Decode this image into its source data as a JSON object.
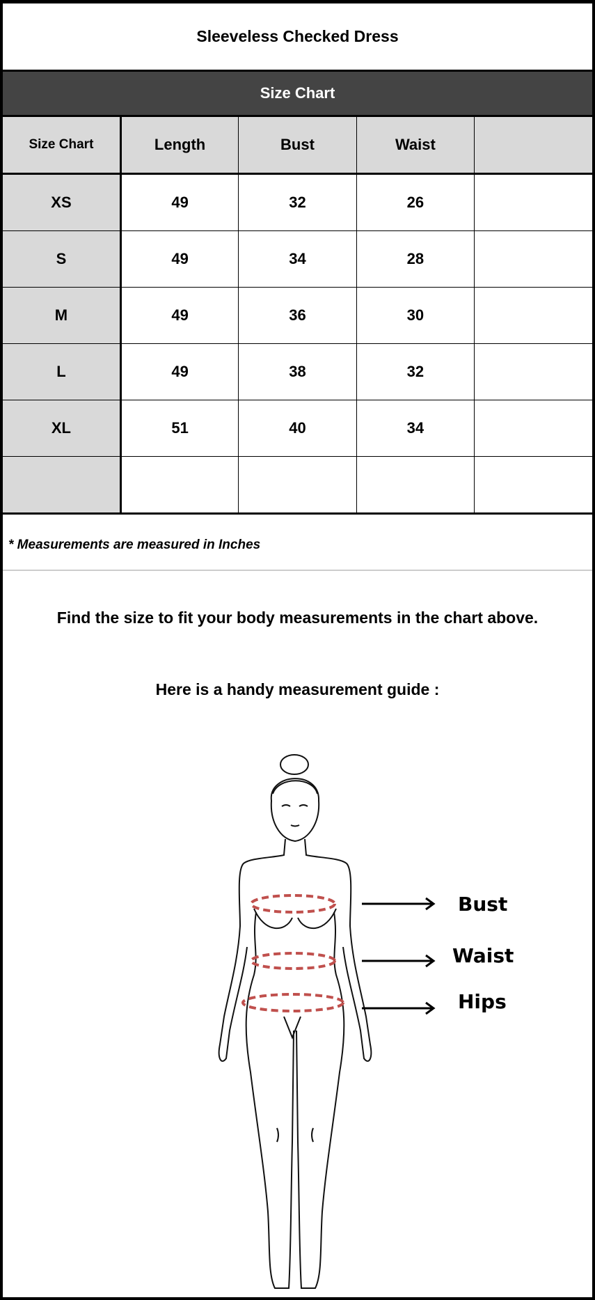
{
  "title": "Sleeveless Checked Dress",
  "band_title": "Size Chart",
  "table": {
    "headers": [
      "Size Chart",
      "Length",
      "Bust",
      "Waist",
      ""
    ],
    "rows": [
      [
        "XS",
        "49",
        "32",
        "26",
        ""
      ],
      [
        "S",
        "49",
        "34",
        "28",
        ""
      ],
      [
        "M",
        "49",
        "36",
        "30",
        ""
      ],
      [
        "L",
        "49",
        "38",
        "32",
        ""
      ],
      [
        "XL",
        "51",
        "40",
        "34",
        ""
      ],
      [
        "",
        "",
        "",
        "",
        ""
      ]
    ]
  },
  "note": "* Measurements are measured in Inches",
  "guide_text": "Find the size to fit your body measurements in the chart above.",
  "guide_subtitle": "Here is a handy measurement guide :",
  "figure": {
    "labels": [
      "Bust",
      "Waist",
      "Hips"
    ],
    "measure_color": "#c0504d",
    "header_color": "#444444"
  }
}
